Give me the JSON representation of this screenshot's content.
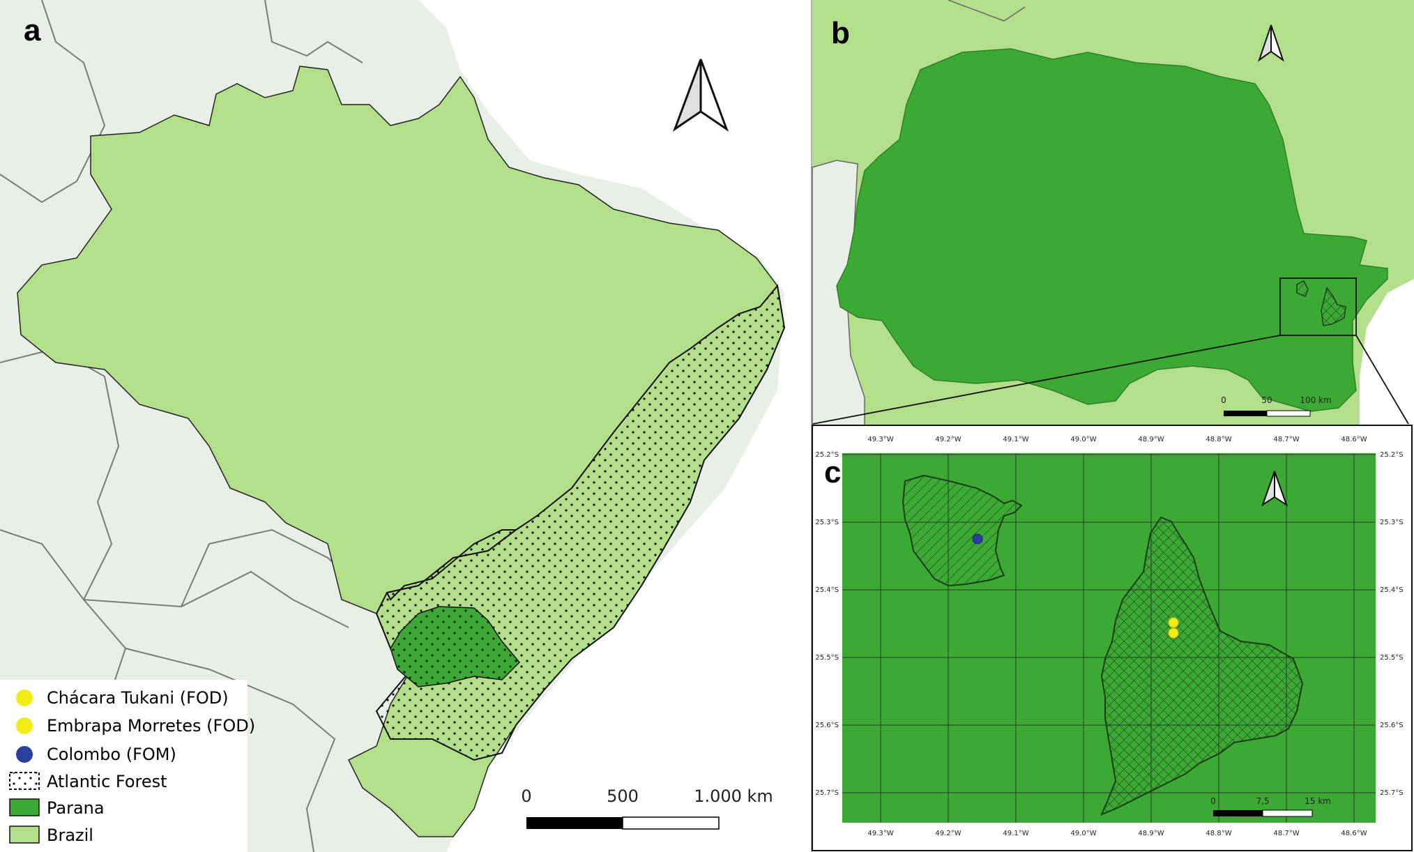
{
  "panels": {
    "a": "a",
    "b": "b",
    "c": "c"
  },
  "legend": {
    "items": [
      {
        "label": "Chácara Tukani (FOD)",
        "symbol": "circle",
        "color": "#f2ec16"
      },
      {
        "label": "Embrapa Morretes (FOD)",
        "symbol": "circle",
        "color": "#f2ec16"
      },
      {
        "label": "Colombo (FOM)",
        "symbol": "circle",
        "color": "#2a3f9e"
      },
      {
        "label": "Atlantic Forest",
        "symbol": "dotted-box",
        "color": "#ffffff"
      },
      {
        "label": "Parana",
        "symbol": "box",
        "color": "#3da935"
      },
      {
        "label": "Brazil",
        "symbol": "box",
        "color": "#b3df8b"
      }
    ]
  },
  "scalebar_a": {
    "ticks": [
      "0",
      "500",
      "1.000 km"
    ]
  },
  "scalebar_b": {
    "ticks": [
      "0",
      "50",
      "100 km"
    ]
  },
  "scalebar_c": {
    "ticks": [
      "0",
      "7,5",
      "15 km"
    ]
  },
  "grid_c": {
    "lon_labels": [
      "49.3°W",
      "49.2°W",
      "49.1°W",
      "49.0°W",
      "48.9°W",
      "48.8°W",
      "48.7°W",
      "48.6°W"
    ],
    "lat_labels": [
      "25.2°S",
      "25.3°S",
      "25.4°S",
      "25.5°S",
      "25.6°S",
      "25.7°S"
    ]
  },
  "colors": {
    "brazil": "#b3df8b",
    "parana": "#3da935",
    "neighbor": "#e8efe6",
    "site_yellow": "#f2ec16",
    "site_blue": "#2a3f9e"
  }
}
